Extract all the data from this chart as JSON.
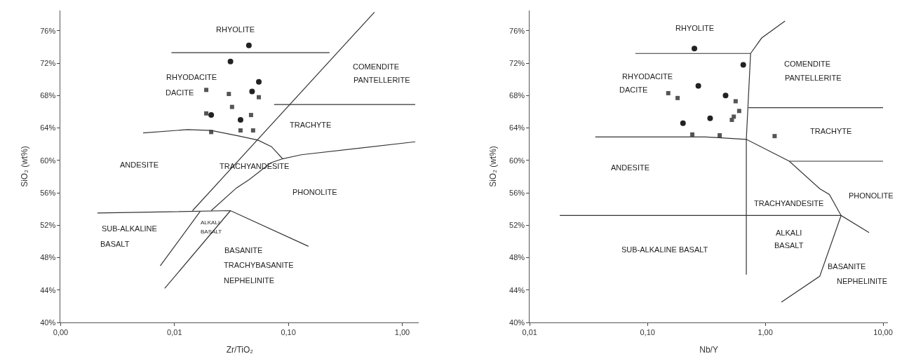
{
  "chart_data": [
    {
      "type": "scatter",
      "xlabel": "Zr/TiO₂",
      "ylabel": "SiO₂ (wt%)",
      "log": "x",
      "grid": false,
      "xlim": [
        0.001,
        1.4
      ],
      "ylim": [
        40,
        78.5
      ],
      "xticks": [
        {
          "value": 0.001,
          "label": "0,00"
        },
        {
          "value": 0.01,
          "label": "0,01"
        },
        {
          "value": 0.1,
          "label": "0,10"
        },
        {
          "value": 1,
          "label": "1,00"
        }
      ],
      "yticks": [
        {
          "value": 40,
          "label": "40%"
        },
        {
          "value": 44,
          "label": "44%"
        },
        {
          "value": 48,
          "label": "48%"
        },
        {
          "value": 52,
          "label": "52%"
        },
        {
          "value": 56,
          "label": "56%"
        },
        {
          "value": 60,
          "label": "60%"
        },
        {
          "value": 64,
          "label": "64%"
        },
        {
          "value": 68,
          "label": "68%"
        },
        {
          "value": 72,
          "label": "72%"
        },
        {
          "value": 76,
          "label": "76%"
        }
      ],
      "series": [
        {
          "marker": "circle",
          "color": "#222222",
          "x": [
            0.045,
            0.031,
            0.055,
            0.048,
            0.021,
            0.038
          ],
          "values": [
            74.2,
            72.2,
            69.7,
            68.5,
            65.6,
            65.0
          ]
        },
        {
          "marker": "square",
          "color": "#555555",
          "x": [
            0.019,
            0.03,
            0.055,
            0.032,
            0.019,
            0.047,
            0.021,
            0.038,
            0.049
          ],
          "values": [
            68.7,
            68.2,
            67.8,
            66.6,
            65.8,
            65.6,
            63.5,
            63.7,
            63.7
          ]
        },
        {
          "type": "line",
          "color": "#333333",
          "x": [
            0.0094,
            0.23,
            null,
            0.0144,
            0.57,
            null,
            0.075,
            1.3,
            null,
            0.0053,
            0.013,
            0.021,
            0.037,
            0.054,
            0.071,
            0.089,
            0.13,
            1.3,
            null,
            0.089,
            0.07,
            0.045,
            0.035,
            0.021,
            null,
            0.0021,
            0.031,
            0.15,
            null,
            0.0168,
            0.0075,
            null,
            0.031,
            0.0082
          ],
          "values": [
            73.3,
            73.3,
            null,
            53.8,
            78.3,
            null,
            66.9,
            66.9,
            null,
            63.4,
            63.8,
            63.7,
            63.0,
            62.5,
            61.7,
            60.2,
            60.7,
            62.3,
            null,
            60.2,
            59.7,
            57.6,
            56.6,
            53.8,
            null,
            53.5,
            53.8,
            49.4,
            null,
            53.7,
            47.0,
            null,
            53.8,
            44.2
          ]
        }
      ],
      "annotations": [
        "RHYOLITE",
        "COMENDITE",
        "PANTELLERITE",
        "RHYODACITE",
        "DACITE",
        "TRACHYTE",
        "ANDESITE",
        "TRACHYANDESITE",
        "PHONOLITE",
        "SUB-ALKALINE",
        "BASALT",
        "ALKALI",
        "BASALT",
        "BASANITE",
        "TRACHYBASANITE",
        "NEPHELINITE"
      ]
    },
    {
      "type": "scatter",
      "xlabel": "Nb/Y",
      "ylabel": "SiO₂ (wt%)",
      "log": "x",
      "grid": false,
      "xlim": [
        0.01,
        11
      ],
      "ylim": [
        40,
        78.5
      ],
      "xticks": [
        {
          "value": 0.01,
          "label": "0,01"
        },
        {
          "value": 0.1,
          "label": "0,10"
        },
        {
          "value": 1,
          "label": "1,00"
        },
        {
          "value": 10,
          "label": "10,00"
        }
      ],
      "yticks": [
        {
          "value": 40,
          "label": "40%"
        },
        {
          "value": 44,
          "label": "44%"
        },
        {
          "value": 48,
          "label": "48%"
        },
        {
          "value": 52,
          "label": "52%"
        },
        {
          "value": 56,
          "label": "56%"
        },
        {
          "value": 60,
          "label": "60%"
        },
        {
          "value": 64,
          "label": "64%"
        },
        {
          "value": 68,
          "label": "68%"
        },
        {
          "value": 72,
          "label": "72%"
        },
        {
          "value": 76,
          "label": "76%"
        }
      ],
      "series": [
        {
          "marker": "circle",
          "color": "#222222",
          "x": [
            0.25,
            0.65,
            0.27,
            0.46,
            0.34,
            0.2
          ],
          "values": [
            73.8,
            71.8,
            69.2,
            68.0,
            65.2,
            64.6
          ]
        },
        {
          "marker": "square",
          "color": "#555555",
          "x": [
            0.15,
            0.18,
            0.56,
            0.6,
            0.54,
            0.52,
            0.24,
            0.41,
            1.2
          ],
          "values": [
            68.3,
            67.7,
            67.3,
            66.1,
            65.4,
            65.0,
            63.2,
            63.1,
            63.0
          ]
        },
        {
          "type": "line",
          "color": "#333333",
          "x": [
            0.079,
            0.75,
            0.93,
            1.47,
            null,
            0.75,
            0.69,
            0.69,
            null,
            0.72,
            10,
            null,
            0.036,
            0.31,
            0.69,
            1.6,
            2.9,
            3.5,
            4.4,
            null,
            1.6,
            10,
            null,
            0.018,
            4.4,
            7.6,
            null,
            4.4,
            2.9,
            1.37
          ],
          "values": [
            73.2,
            73.2,
            75.1,
            77.2,
            null,
            73.2,
            62.6,
            45.9,
            null,
            66.5,
            66.5,
            null,
            62.9,
            62.9,
            62.6,
            59.9,
            56.5,
            55.8,
            53.2,
            null,
            59.9,
            59.9,
            null,
            53.2,
            53.2,
            51.1,
            null,
            53.2,
            45.7,
            42.5
          ]
        }
      ],
      "annotations": [
        "RHYOLITE",
        "COMENDITE",
        "PANTELLERITE",
        "RHYODACITE",
        "DACITE",
        "TRACHYTE",
        "ANDESITE",
        "TRACHYANDESITE",
        "PHONOLITE",
        "ALKALI",
        "BASALT",
        "SUB-ALKALINE BASALT",
        "BASANITE",
        "NEPHELINITE"
      ]
    }
  ]
}
